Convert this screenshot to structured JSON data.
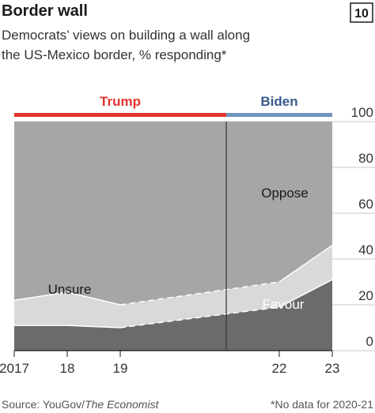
{
  "chart_data": {
    "type": "stacked_area",
    "title": "Border wall",
    "chart_number": "10",
    "subtitle": [
      "Democrats’ views on building a wall along",
      "the US-Mexico border, % responding*"
    ],
    "source_prefix": "Source: YouGov/",
    "source_publication": "The Economist",
    "footnote": "*No data for 2020-21",
    "x": [
      2017,
      2018,
      2019,
      2022,
      2023
    ],
    "series": [
      {
        "name": "Favour",
        "color": "#6b6b6b",
        "values": [
          11,
          11,
          10,
          19,
          31
        ]
      },
      {
        "name": "Unsure",
        "color": "#d9d9d9",
        "values": [
          11,
          14.5,
          10,
          11,
          15
        ]
      },
      {
        "name": "Oppose",
        "color": "#a6a6a6",
        "values": [
          78,
          74.5,
          80,
          70,
          54
        ]
      }
    ],
    "periods": [
      {
        "label": "Trump",
        "start": 2017,
        "end": 2021,
        "color": "#e3342f"
      },
      {
        "label": "Biden",
        "start": 2021,
        "end": 2023,
        "color": "#7094c0"
      }
    ],
    "xlim": [
      2017,
      2023
    ],
    "xticks": [
      2017,
      {
        "value": 2018,
        "label": "18"
      },
      {
        "value": 2019,
        "label": "19"
      },
      {
        "value": 2022,
        "label": "22"
      },
      {
        "value": 2023,
        "label": "23"
      }
    ],
    "ylim": [
      0,
      100
    ],
    "yticks": [
      0,
      20,
      40,
      60,
      80,
      100
    ],
    "grid": true
  }
}
